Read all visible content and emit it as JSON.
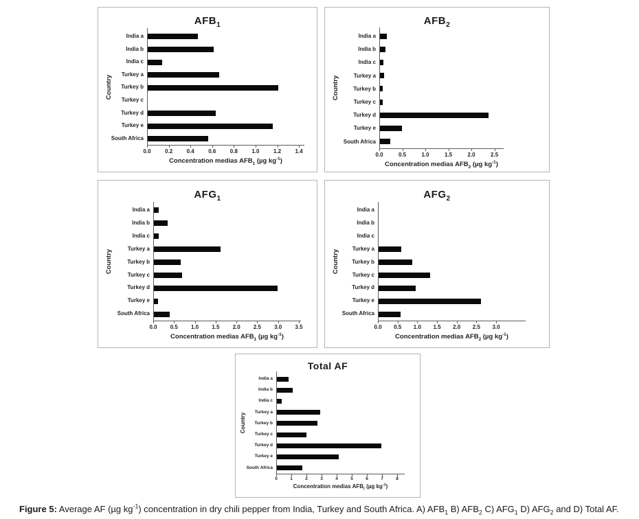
{
  "caption": {
    "label": "Figure 5:",
    "segments": [
      {
        "t": " Average AF (µg kg"
      },
      {
        "t": "-1",
        "style": "sup"
      },
      {
        "t": ") concentration in dry chili pepper from India, Turkey and South Africa. A) AFB"
      },
      {
        "t": "1",
        "style": "sub"
      },
      {
        "t": " B) AFB"
      },
      {
        "t": "2",
        "style": "sub"
      },
      {
        "t": " C) AFG"
      },
      {
        "t": "1",
        "style": "sub"
      },
      {
        "t": " D) AFG"
      },
      {
        "t": "2",
        "style": "sub"
      },
      {
        "t": " and D) Total AF."
      }
    ]
  },
  "chart_data": [
    {
      "id": "afb1",
      "type": "bar",
      "orientation": "horizontal",
      "title": "AFB1",
      "title_segments": [
        {
          "t": "AFB"
        },
        {
          "t": "1",
          "style": "sub"
        }
      ],
      "ylabel": "Country",
      "xlabel": "Concentration medias AFB1 (µg kg-1)",
      "xlabel_segments": [
        {
          "t": "Concentration medias AFB"
        },
        {
          "t": "1",
          "style": "sub"
        },
        {
          "t": " (µg kg"
        },
        {
          "t": "-1",
          "style": "sup"
        },
        {
          "t": ")"
        }
      ],
      "categories": [
        "India a",
        "India b",
        "India c",
        "Turkey a",
        "Turkey b",
        "Turkey c",
        "Turkey d",
        "Turkey e",
        "South Africa"
      ],
      "values": [
        0.46,
        0.61,
        0.13,
        0.66,
        1.2,
        0,
        0.63,
        1.15,
        0.56
      ],
      "xlim": [
        0,
        1.45
      ],
      "xticks": [
        0,
        0.2,
        0.4,
        0.6,
        0.8,
        1.0,
        1.2,
        1.4
      ],
      "xtick_labels": [
        "0.0",
        "0.2",
        "0.4",
        "0.6",
        "0.8",
        "1.0",
        "1.2",
        "1.4"
      ],
      "bar_color": "#0a0a0a",
      "grid": false
    },
    {
      "id": "afb2",
      "type": "bar",
      "orientation": "horizontal",
      "title": "AFB2",
      "title_segments": [
        {
          "t": "AFB"
        },
        {
          "t": "2",
          "style": "sub"
        }
      ],
      "ylabel": "Country",
      "xlabel": "Concentration medias AFB2 (µg kg-1)",
      "xlabel_segments": [
        {
          "t": "Concentration medias AFB"
        },
        {
          "t": "2",
          "style": "sub"
        },
        {
          "t": " (µg kg"
        },
        {
          "t": "-1",
          "style": "sup"
        },
        {
          "t": ")"
        }
      ],
      "categories": [
        "India a",
        "India b",
        "India c",
        "Turkey a",
        "Turkey b",
        "Turkey c",
        "Turkey d",
        "Turkey e",
        "South Africa"
      ],
      "values": [
        0.15,
        0.12,
        0.07,
        0.09,
        0.06,
        0.06,
        2.35,
        0.47,
        0.22
      ],
      "xlim": [
        0,
        2.7
      ],
      "xticks": [
        0,
        0.5,
        1.0,
        1.5,
        2.0,
        2.5
      ],
      "xtick_labels": [
        "0.0",
        "0.5",
        "1.0",
        "1.5",
        "2.0",
        "2.5"
      ],
      "bar_color": "#0a0a0a",
      "grid": false
    },
    {
      "id": "afg1",
      "type": "bar",
      "orientation": "horizontal",
      "title": "AFG1",
      "title_segments": [
        {
          "t": "AFG"
        },
        {
          "t": "1",
          "style": "sub"
        }
      ],
      "ylabel": "Country",
      "xlabel": "Concentration medias AFB1 (µg kg-1)",
      "xlabel_segments": [
        {
          "t": "Concentration medias AFB"
        },
        {
          "t": "1",
          "style": "sub"
        },
        {
          "t": " (µg kg"
        },
        {
          "t": "-1",
          "style": "sup"
        },
        {
          "t": ")"
        }
      ],
      "categories": [
        "India a",
        "India b",
        "India c",
        "Turkey a",
        "Turkey b",
        "Turkey c",
        "Turkey d",
        "Turkey e",
        "South Africa"
      ],
      "values": [
        0.11,
        0.33,
        0.12,
        1.6,
        0.64,
        0.67,
        2.97,
        0.1,
        0.38
      ],
      "xlim": [
        0,
        3.55
      ],
      "xticks": [
        0,
        0.5,
        1.0,
        1.5,
        2.0,
        2.5,
        3.0,
        3.5
      ],
      "xtick_labels": [
        "0.0",
        "0.5",
        "1.0",
        "1.5",
        "2.0",
        "2.5",
        "3.0",
        "3.5"
      ],
      "bar_color": "#0a0a0a",
      "grid": false
    },
    {
      "id": "afg2",
      "type": "bar",
      "orientation": "horizontal",
      "title": "AFG2",
      "title_segments": [
        {
          "t": "AFG"
        },
        {
          "t": "2",
          "style": "sub"
        }
      ],
      "ylabel": "Country",
      "xlabel": "Concentration medias AFB2 (µg kg-1)",
      "xlabel_segments": [
        {
          "t": "Concentration medias AFB"
        },
        {
          "t": "2",
          "style": "sub"
        },
        {
          "t": " (µg kg"
        },
        {
          "t": "-1",
          "style": "sup"
        },
        {
          "t": ")"
        }
      ],
      "categories": [
        "India a",
        "India b",
        "India c",
        "Turkey a",
        "Turkey b",
        "Turkey c",
        "Turkey d",
        "Turkey e",
        "South Africa"
      ],
      "values": [
        0,
        0,
        0,
        0.58,
        0.85,
        1.3,
        0.95,
        2.6,
        0.55
      ],
      "xlim": [
        0,
        3.75
      ],
      "xticks": [
        0,
        0.5,
        1.0,
        1.5,
        2.0,
        2.5,
        3.0
      ],
      "xtick_labels": [
        "0.0",
        "0.5",
        "1.0",
        "1.5",
        "2.0",
        "2.5",
        "3.0"
      ],
      "bar_color": "#0a0a0a",
      "grid": false
    },
    {
      "id": "total",
      "type": "bar",
      "orientation": "horizontal",
      "title": "Total AF",
      "title_segments": [
        {
          "t": "Total AF"
        }
      ],
      "ylabel": "Country",
      "xlabel": "Concentration medias AFBt (µg kg-1)",
      "xlabel_segments": [
        {
          "t": "Concentration medias AFB"
        },
        {
          "t": "t",
          "style": "sub"
        },
        {
          "t": " (µg kg"
        },
        {
          "t": "-1",
          "style": "sup"
        },
        {
          "t": ")"
        }
      ],
      "categories": [
        "India a",
        "India b",
        "India c",
        "Turkey a",
        "Turkey b",
        "Turkey c",
        "Turkey d",
        "Turkey e",
        "South Africa"
      ],
      "values": [
        0.75,
        1.05,
        0.3,
        2.85,
        2.7,
        1.95,
        6.9,
        4.1,
        1.7
      ],
      "xlim": [
        0,
        8.5
      ],
      "xticks": [
        0,
        1,
        2,
        3,
        4,
        5,
        6,
        7,
        8
      ],
      "xtick_labels": [
        "0",
        "1",
        "2",
        "3",
        "4",
        "5",
        "6",
        "7",
        "8"
      ],
      "bar_color": "#0a0a0a",
      "grid": false
    }
  ]
}
